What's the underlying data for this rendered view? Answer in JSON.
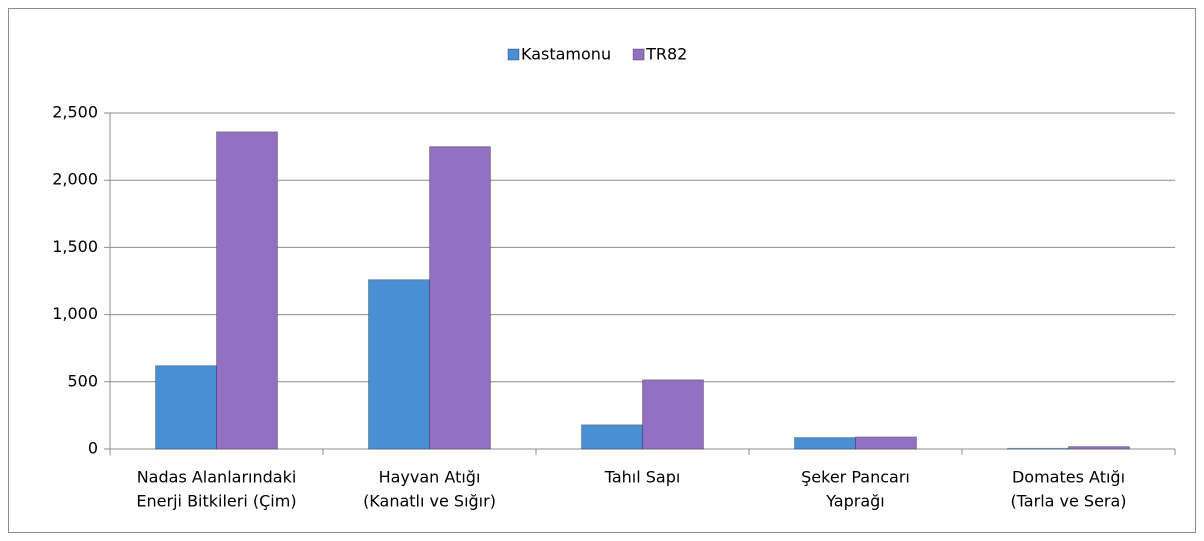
{
  "chart_data": {
    "type": "bar",
    "categories": [
      [
        "Nadas Alanlarındaki",
        "Enerji Bitkileri (Çim)"
      ],
      [
        "Hayvan Atığı",
        "(Kanatlı ve Sığır)"
      ],
      [
        "Tahıl Sapı"
      ],
      [
        "Şeker Pancarı",
        "Yaprağı"
      ],
      [
        "Domates Atığı",
        "(Tarla ve Sera)"
      ]
    ],
    "series": [
      {
        "name": "Kastamonu",
        "color": "#4a8fd3",
        "values": [
          620,
          1260,
          180,
          85,
          5
        ]
      },
      {
        "name": "TR82",
        "color": "#9371c2",
        "values": [
          2360,
          2250,
          515,
          90,
          18
        ]
      }
    ],
    "ylim": [
      0,
      2500
    ],
    "yticks": [
      0,
      {
        "value": 500,
        "label": "500"
      },
      {
        "value": 1000,
        "label": "1,000"
      },
      {
        "value": 1500,
        "label": "1,500"
      },
      {
        "value": 2000,
        "label": "2,000"
      },
      {
        "value": 2500,
        "label": "2,500"
      }
    ],
    "grid": true,
    "legend": "top"
  }
}
